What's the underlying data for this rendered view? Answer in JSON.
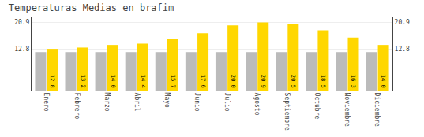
{
  "chart_data": {
    "type": "bar",
    "title": "Temperaturas Medias en brafim",
    "categories": [
      "Enero",
      "Febrero",
      "Marzo",
      "Abril",
      "Mayo",
      "Junio",
      "Julio",
      "Agosto",
      "Septiembre",
      "Octubre",
      "Noviembre",
      "Diciembre"
    ],
    "series": [
      {
        "color": "#BBBBBB",
        "values": [
          11.8,
          11.8,
          11.8,
          11.8,
          11.8,
          11.8,
          11.8,
          11.8,
          11.8,
          11.8,
          11.8,
          11.8
        ]
      },
      {
        "color": "#FFD700",
        "values": [
          12.8,
          13.2,
          14.0,
          14.4,
          15.7,
          17.6,
          20.0,
          20.9,
          20.5,
          18.5,
          16.3,
          14.0
        ],
        "value_labels": [
          "12.8",
          "13.2",
          "14.0",
          "14.4",
          "15.7",
          "17.6",
          "20.0",
          "20.9",
          "20.5",
          "18.5",
          "16.3",
          "14.0"
        ],
        "data_labels": true
      }
    ],
    "ylim": [
      0,
      22.5
    ],
    "yticks": [
      12.8,
      20.9
    ],
    "y2lim": [
      0,
      22.5
    ],
    "y2ticks": [
      12.8,
      20.9
    ],
    "grid": true
  }
}
